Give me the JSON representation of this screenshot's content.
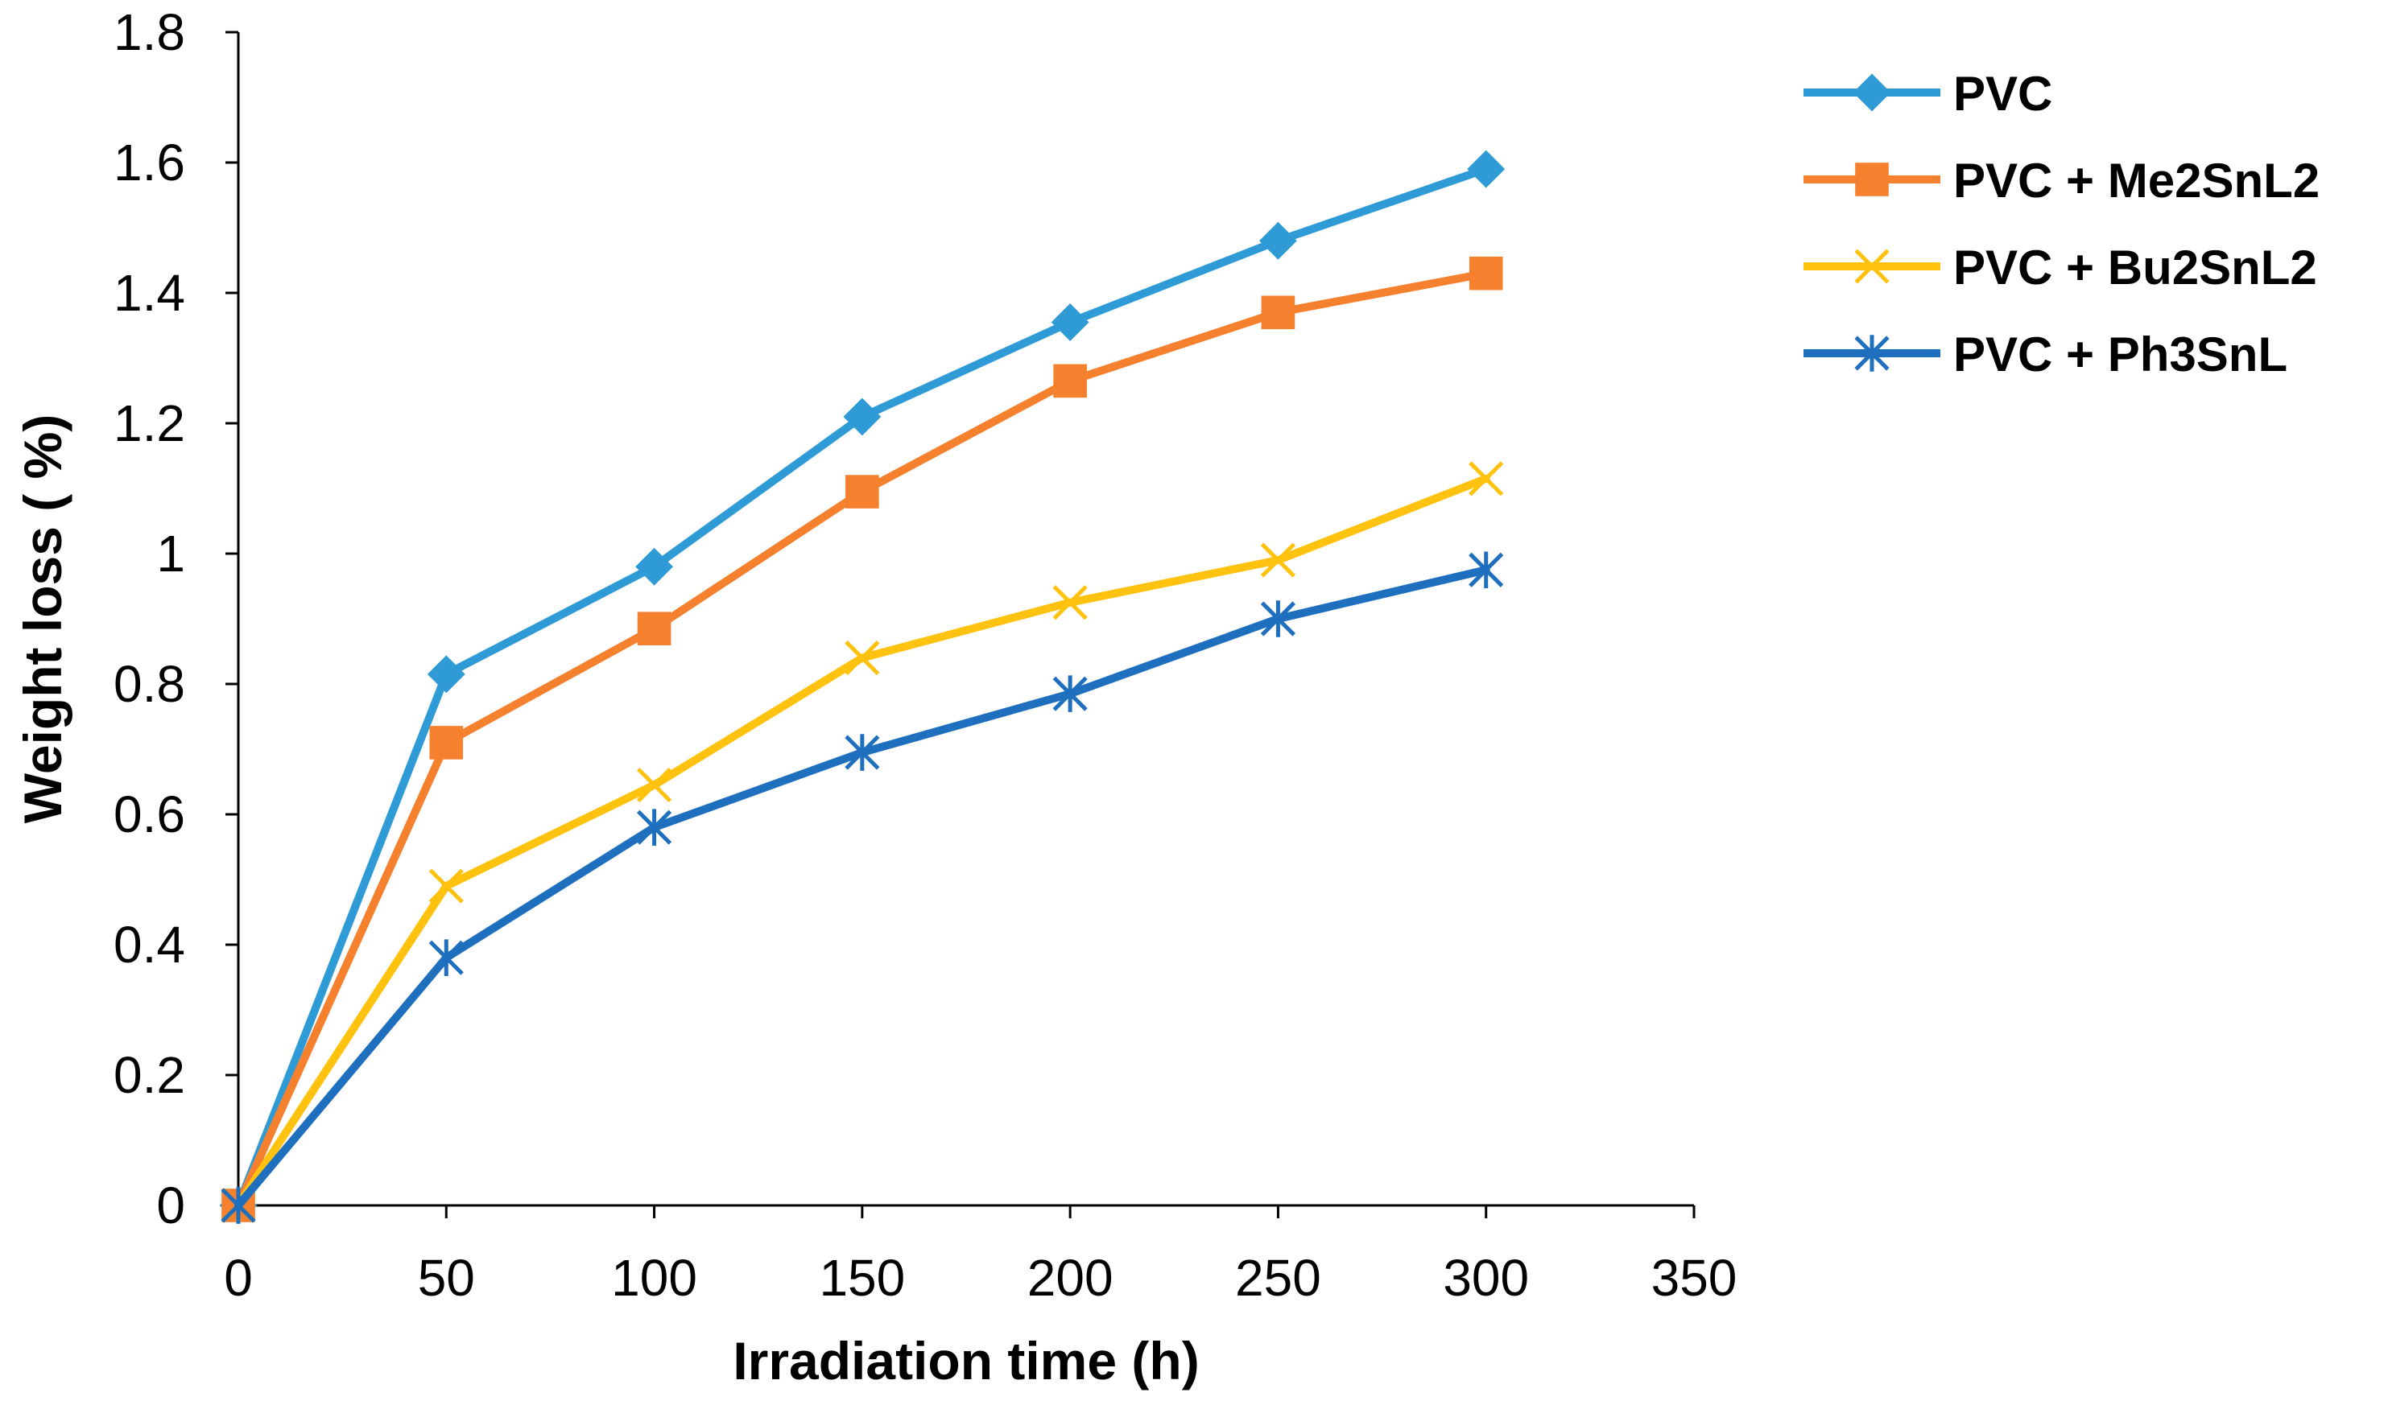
{
  "chart_data": {
    "type": "line",
    "title": "",
    "xlabel": "Irradiation time (h)",
    "ylabel": "Weight loss ( %)",
    "xlim": [
      0,
      350
    ],
    "ylim": [
      0,
      1.8
    ],
    "xticks": [
      0,
      50,
      100,
      150,
      200,
      250,
      300,
      350
    ],
    "yticks": [
      0,
      0.2,
      0.4,
      0.6,
      0.8,
      1,
      1.2,
      1.4,
      1.6,
      1.8
    ],
    "x": [
      0,
      50,
      100,
      150,
      200,
      250,
      300
    ],
    "grid": false,
    "legend_position": "right",
    "series": [
      {
        "name": "PVC",
        "color": "#2E9BD6",
        "marker": "diamond",
        "values": [
          0,
          0.815,
          0.98,
          1.21,
          1.355,
          1.48,
          1.59
        ]
      },
      {
        "name": "PVC + Me2SnL2",
        "color": "#F5802E",
        "marker": "square",
        "values": [
          0,
          0.71,
          0.885,
          1.095,
          1.265,
          1.37,
          1.43
        ]
      },
      {
        "name": "PVC + Bu2SnL2",
        "color": "#FFC20E",
        "marker": "x",
        "values": [
          0,
          0.49,
          0.645,
          0.84,
          0.925,
          0.99,
          1.115
        ]
      },
      {
        "name": "PVC + Ph3SnL",
        "color": "#1F6FBF",
        "marker": "star",
        "values": [
          0,
          0.38,
          0.58,
          0.695,
          0.785,
          0.9,
          0.975
        ]
      }
    ]
  }
}
